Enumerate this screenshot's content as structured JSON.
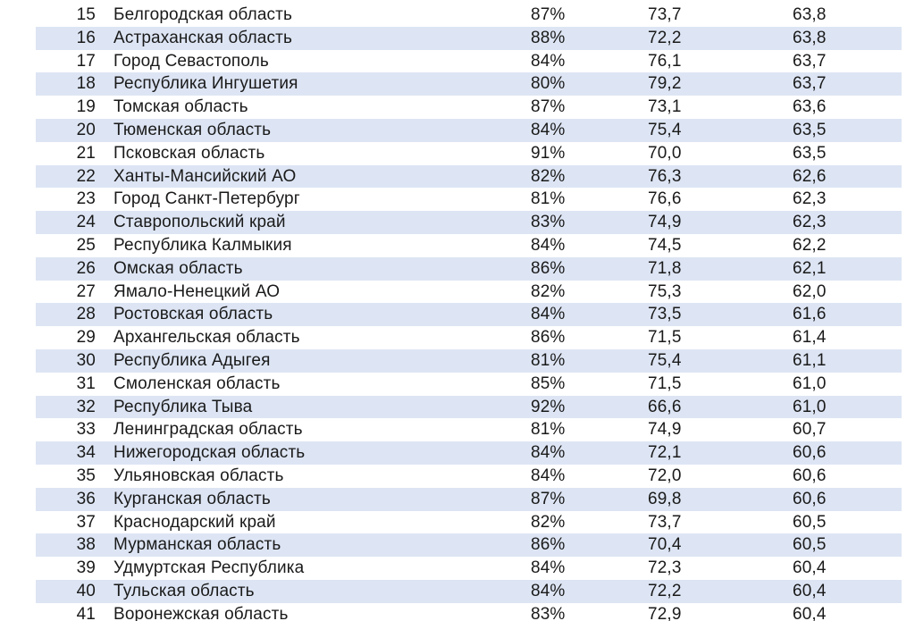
{
  "table": {
    "rows": [
      {
        "rank": "15",
        "region": "Белгородская область",
        "share": "87%",
        "value1": "73,7",
        "value2": "63,8"
      },
      {
        "rank": "16",
        "region": "Астраханская область",
        "share": "88%",
        "value1": "72,2",
        "value2": "63,8"
      },
      {
        "rank": "17",
        "region": "Город Севастополь",
        "share": "84%",
        "value1": "76,1",
        "value2": "63,7"
      },
      {
        "rank": "18",
        "region": "Республика Ингушетия",
        "share": "80%",
        "value1": "79,2",
        "value2": "63,7"
      },
      {
        "rank": "19",
        "region": "Томская область",
        "share": "87%",
        "value1": "73,1",
        "value2": "63,6"
      },
      {
        "rank": "20",
        "region": "Тюменская область",
        "share": "84%",
        "value1": "75,4",
        "value2": "63,5"
      },
      {
        "rank": "21",
        "region": "Псковская область",
        "share": "91%",
        "value1": "70,0",
        "value2": "63,5"
      },
      {
        "rank": "22",
        "region": "Ханты-Мансийский АО",
        "share": "82%",
        "value1": "76,3",
        "value2": "62,6"
      },
      {
        "rank": "23",
        "region": "Город Санкт-Петербург",
        "share": "81%",
        "value1": "76,6",
        "value2": "62,3"
      },
      {
        "rank": "24",
        "region": "Ставропольский край",
        "share": "83%",
        "value1": "74,9",
        "value2": "62,3"
      },
      {
        "rank": "25",
        "region": "Республика Калмыкия",
        "share": "84%",
        "value1": "74,5",
        "value2": "62,2"
      },
      {
        "rank": "26",
        "region": "Омская область",
        "share": "86%",
        "value1": "71,8",
        "value2": "62,1"
      },
      {
        "rank": "27",
        "region": "Ямало-Ненецкий АО",
        "share": "82%",
        "value1": "75,3",
        "value2": "62,0"
      },
      {
        "rank": "28",
        "region": "Ростовская область",
        "share": "84%",
        "value1": "73,5",
        "value2": "61,6"
      },
      {
        "rank": "29",
        "region": "Архангельская область",
        "share": "86%",
        "value1": "71,5",
        "value2": "61,4"
      },
      {
        "rank": "30",
        "region": "Республика Адыгея",
        "share": "81%",
        "value1": "75,4",
        "value2": "61,1"
      },
      {
        "rank": "31",
        "region": "Смоленская область",
        "share": "85%",
        "value1": "71,5",
        "value2": "61,0"
      },
      {
        "rank": "32",
        "region": "Республика Тыва",
        "share": "92%",
        "value1": "66,6",
        "value2": "61,0"
      },
      {
        "rank": "33",
        "region": "Ленинградская область",
        "share": "81%",
        "value1": "74,9",
        "value2": "60,7"
      },
      {
        "rank": "34",
        "region": "Нижегородская область",
        "share": "84%",
        "value1": "72,1",
        "value2": "60,6"
      },
      {
        "rank": "35",
        "region": "Ульяновская область",
        "share": "84%",
        "value1": "72,0",
        "value2": "60,6"
      },
      {
        "rank": "36",
        "region": "Курганская область",
        "share": "87%",
        "value1": "69,8",
        "value2": "60,6"
      },
      {
        "rank": "37",
        "region": "Краснодарский край",
        "share": "82%",
        "value1": "73,7",
        "value2": "60,5"
      },
      {
        "rank": "38",
        "region": "Мурманская область",
        "share": "86%",
        "value1": "70,4",
        "value2": "60,5"
      },
      {
        "rank": "39",
        "region": "Удмуртская Республика",
        "share": "84%",
        "value1": "72,3",
        "value2": "60,4"
      },
      {
        "rank": "40",
        "region": "Тульская область",
        "share": "84%",
        "value1": "72,2",
        "value2": "60,4"
      },
      {
        "rank": "41",
        "region": "Воронежская область",
        "share": "83%",
        "value1": "72,9",
        "value2": "60,4"
      }
    ]
  }
}
